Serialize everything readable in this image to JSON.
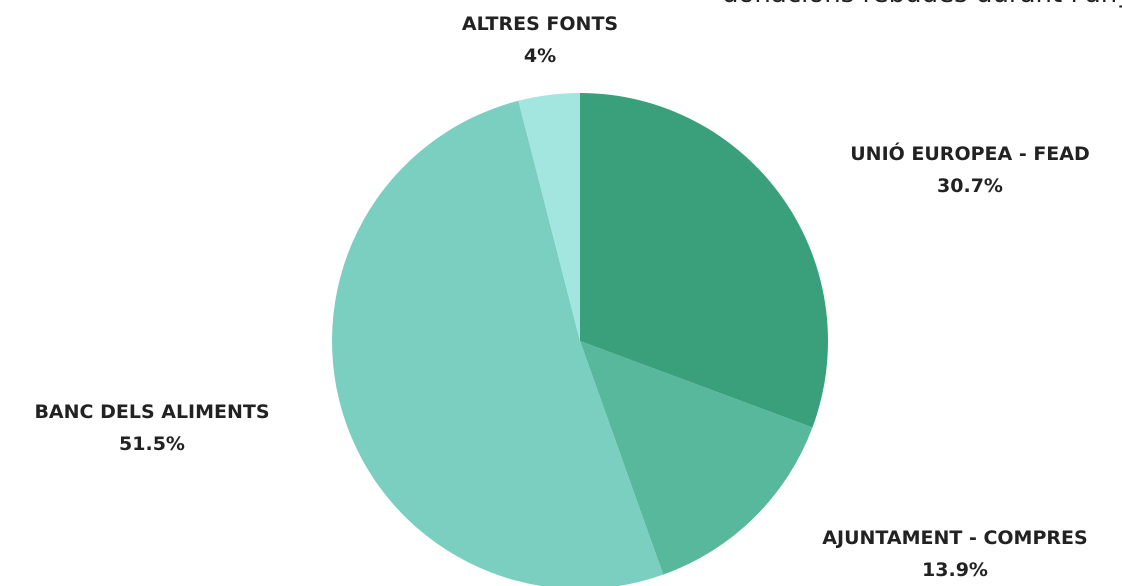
{
  "chart_data": {
    "type": "pie",
    "annotation": "donacions rebudes durant l'any:",
    "categories": [
      "UNIÓ EUROPEA - FEAD",
      "AJUNTAMENT - COMPRES",
      "BANC DELS ALIMENTS",
      "ALTRES FONTS"
    ],
    "values": [
      30.7,
      13.9,
      51.5,
      4
    ],
    "value_labels": [
      "30.7%",
      "13.9%",
      "51.5%",
      "4%"
    ],
    "colors": [
      "#3aa07c",
      "#58b89c",
      "#7bcfc0",
      "#a3e6e0"
    ]
  }
}
